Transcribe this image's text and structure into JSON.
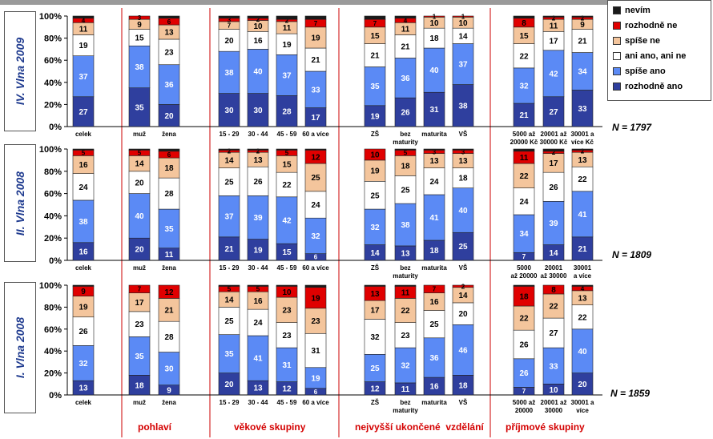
{
  "colors": {
    "nevim": "#1a1a1a",
    "rozhodne_ne": "#e00000",
    "spise_ne": "#f4c59c",
    "ani_ano_ani_ne": "#ffffff",
    "spise_ano": "#5b8af5",
    "rozhodne_ano": "#2f3f9e",
    "divider": "#cc0000"
  },
  "legend": [
    {
      "key": "nevim",
      "label": "nevím"
    },
    {
      "key": "rozhodne_ne",
      "label": "rozhodně ne"
    },
    {
      "key": "spise_ne",
      "label": "spíše ne"
    },
    {
      "key": "ani_ano_ani_ne",
      "label": "ani ano, ani ne"
    },
    {
      "key": "spise_ano",
      "label": "spíše ano"
    },
    {
      "key": "rozhodne_ano",
      "label": "rozhodně ano"
    }
  ],
  "groups": [
    "pohlaví",
    "věkové skupiny",
    "nejvyšší ukončené  vzdělání",
    "příjmové skupiny"
  ],
  "y_ticks": [
    "0%",
    "20%",
    "40%",
    "60%",
    "80%",
    "100%"
  ],
  "chart_data": [
    {
      "type": "bar",
      "stacked": true,
      "wave": "IV. Vlna 2009",
      "n": "N = 1797",
      "ylim": [
        0,
        100
      ],
      "categories": [
        "celek",
        "muž",
        "žena",
        "15 - 29",
        "30 - 44",
        "45 - 59",
        "60 a více",
        "ZŠ",
        "bez maturity",
        "maturita",
        "VŠ",
        "5000 až 20000 Kč",
        "20001 až 30000 Kč",
        "30001 a více Kč"
      ],
      "category_lines": [
        [
          "celek"
        ],
        [
          "muž"
        ],
        [
          "žena"
        ],
        [
          "15 - 29"
        ],
        [
          "30 - 44"
        ],
        [
          "45 - 59"
        ],
        [
          "60 a více"
        ],
        [
          "ZŠ"
        ],
        [
          "bez",
          "maturity"
        ],
        [
          "maturita"
        ],
        [
          "VŠ"
        ],
        [
          "5000 až",
          "20000 Kč"
        ],
        [
          "20001 až",
          "30000 Kč"
        ],
        [
          "30001 a",
          "více Kč"
        ]
      ],
      "series": [
        {
          "name": "rozhodně ano",
          "values": [
            27,
            35,
            20,
            30,
            30,
            28,
            17,
            19,
            26,
            31,
            38,
            21,
            27,
            33
          ]
        },
        {
          "name": "spíše ano",
          "values": [
            37,
            38,
            36,
            38,
            40,
            37,
            33,
            35,
            36,
            40,
            37,
            32,
            42,
            34
          ]
        },
        {
          "name": "ani ano, ani ne",
          "values": [
            19,
            15,
            23,
            20,
            16,
            19,
            21,
            21,
            21,
            18,
            14,
            22,
            17,
            21
          ]
        },
        {
          "name": "spíše ne",
          "values": [
            11,
            9,
            13,
            7,
            10,
            11,
            19,
            15,
            11,
            10,
            10,
            15,
            11,
            9
          ]
        },
        {
          "name": "rozhodně ne",
          "values": [
            4,
            3,
            6,
            3,
            2,
            2,
            7,
            7,
            4,
            1,
            1,
            8,
            2,
            2
          ]
        },
        {
          "name": "nevím",
          "values": [
            2,
            0,
            2,
            2,
            2,
            3,
            3,
            3,
            2,
            0,
            0,
            2,
            1,
            1
          ]
        }
      ]
    },
    {
      "type": "bar",
      "stacked": true,
      "wave": "II. Vlna 2008",
      "n": "N = 1809",
      "ylim": [
        0,
        100
      ],
      "categories": [
        "celek",
        "muž",
        "žena",
        "15 - 29",
        "30 - 44",
        "45 - 59",
        "60 a více",
        "ZŠ",
        "bez maturity",
        "maturita",
        "VŠ",
        "5000 až 20000",
        "20001 až 30000",
        "30001 a více"
      ],
      "category_lines": [
        [
          "celek"
        ],
        [
          "muž"
        ],
        [
          "žena"
        ],
        [
          "15 - 29"
        ],
        [
          "30 - 44"
        ],
        [
          "45 - 59"
        ],
        [
          "60 a více"
        ],
        [
          "ZŠ"
        ],
        [
          "bez",
          "maturity"
        ],
        [
          "maturita"
        ],
        [
          "VŠ"
        ],
        [
          "5000",
          "až 20000"
        ],
        [
          "20001",
          "až 30000"
        ],
        [
          "30001",
          "a více"
        ]
      ],
      "series": [
        {
          "name": "rozhodně ano",
          "values": [
            16,
            20,
            11,
            21,
            19,
            15,
            6,
            14,
            13,
            18,
            25,
            7,
            14,
            21
          ]
        },
        {
          "name": "spíše ano",
          "values": [
            38,
            40,
            35,
            37,
            39,
            42,
            32,
            32,
            38,
            41,
            40,
            34,
            39,
            41
          ]
        },
        {
          "name": "ani ano, ani ne",
          "values": [
            24,
            20,
            28,
            25,
            26,
            22,
            24,
            25,
            25,
            24,
            18,
            24,
            26,
            22
          ]
        },
        {
          "name": "spíše ne",
          "values": [
            16,
            14,
            18,
            14,
            13,
            15,
            25,
            19,
            18,
            13,
            13,
            22,
            17,
            13
          ]
        },
        {
          "name": "rozhodně ne",
          "values": [
            5,
            5,
            6,
            2,
            2,
            5,
            12,
            10,
            5,
            3,
            3,
            11,
            2,
            2
          ]
        },
        {
          "name": "nevím",
          "values": [
            1,
            1,
            2,
            1,
            1,
            1,
            1,
            0,
            1,
            1,
            1,
            2,
            2,
            1
          ]
        }
      ]
    },
    {
      "type": "bar",
      "stacked": true,
      "wave": "I. Vlna 2008",
      "n": "N = 1859",
      "ylim": [
        0,
        100
      ],
      "categories": [
        "celek",
        "muž",
        "žena",
        "15 - 29",
        "30 - 44",
        "45 - 59",
        "60 a více",
        "ZŠ",
        "bez maturity",
        "maturita",
        "VŠ",
        "5000 až 20000",
        "20001 až 30000",
        "30001 a více"
      ],
      "category_lines": [
        [
          "celek"
        ],
        [
          "muž"
        ],
        [
          "žena"
        ],
        [
          "15 - 29"
        ],
        [
          "30 - 44"
        ],
        [
          "45 - 59"
        ],
        [
          "60 a více"
        ],
        [
          "ZŠ"
        ],
        [
          "bez",
          "maturity"
        ],
        [
          "maturita"
        ],
        [
          "VŠ"
        ],
        [
          "5000 až",
          "20000"
        ],
        [
          "20001 až",
          "30000"
        ],
        [
          "30001 a",
          "více"
        ]
      ],
      "series": [
        {
          "name": "rozhodně ano",
          "values": [
            13,
            18,
            9,
            20,
            13,
            12,
            6,
            12,
            11,
            16,
            18,
            7,
            10,
            20
          ]
        },
        {
          "name": "spíše ano",
          "values": [
            32,
            35,
            30,
            35,
            41,
            31,
            19,
            25,
            32,
            36,
            46,
            26,
            33,
            40
          ]
        },
        {
          "name": "ani ano, ani ne",
          "values": [
            26,
            23,
            28,
            25,
            24,
            23,
            31,
            32,
            23,
            25,
            20,
            26,
            27,
            22
          ]
        },
        {
          "name": "spíše ne",
          "values": [
            19,
            17,
            21,
            14,
            16,
            23,
            23,
            17,
            22,
            16,
            14,
            22,
            22,
            13
          ]
        },
        {
          "name": "rozhodně ne",
          "values": [
            9,
            7,
            12,
            5,
            5,
            10,
            19,
            13,
            11,
            7,
            2,
            18,
            8,
            4
          ]
        },
        {
          "name": "nevím",
          "values": [
            1,
            0,
            0,
            1,
            1,
            1,
            2,
            1,
            1,
            0,
            0,
            1,
            0,
            1
          ]
        }
      ]
    }
  ]
}
